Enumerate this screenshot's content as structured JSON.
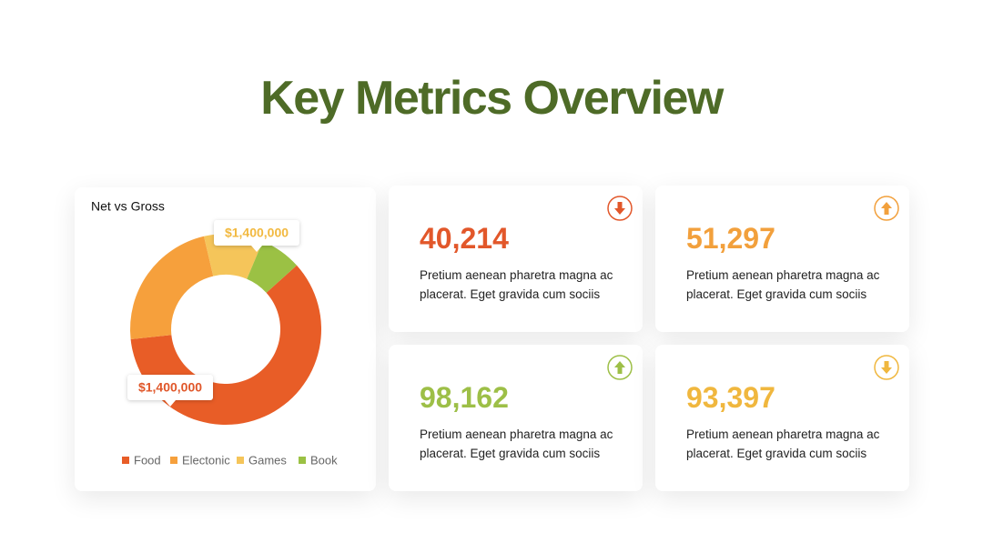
{
  "title": "Key Metrics Overview",
  "chart_data": {
    "type": "donut",
    "title": "Net vs Gross",
    "categories": [
      "Food",
      "Electonic",
      "Games",
      "Book"
    ],
    "values": [
      60,
      23,
      10,
      7
    ],
    "colors": [
      "#e85d27",
      "#f6a03c",
      "#f5c55a",
      "#9bc144"
    ],
    "annotations": [
      {
        "text": "$1,400,000",
        "color": "#f2b940"
      },
      {
        "text": "$1,400,000",
        "color": "#e0572a"
      }
    ],
    "legend": "bottom"
  },
  "cards": [
    {
      "value": "40,214",
      "text": "Pretium aenean pharetra magna ac placerat. Eget gravida cum sociis",
      "color": "#e2572a",
      "trend": "down"
    },
    {
      "value": "51,297",
      "text": "Pretium aenean pharetra magna ac placerat. Eget gravida cum sociis",
      "color": "#f2a03c",
      "trend": "up"
    },
    {
      "value": "98,162",
      "text": "Pretium aenean pharetra magna ac placerat. Eget gravida cum sociis",
      "color": "#9dbf47",
      "trend": "up"
    },
    {
      "value": "93,397",
      "text": "Pretium aenean pharetra magna ac placerat. Eget gravida cum sociis",
      "color": "#f0b73e",
      "trend": "down"
    }
  ]
}
